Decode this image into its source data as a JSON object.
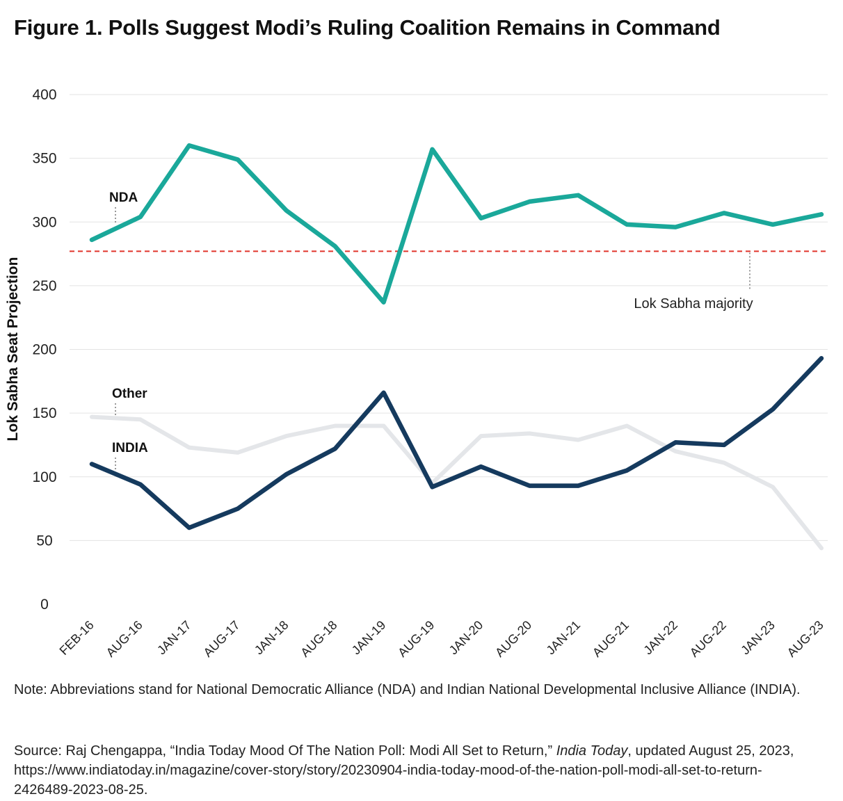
{
  "title": "Figure 1. Polls Suggest Modi’s Ruling Coalition Remains in Command",
  "note": "Note: Abbreviations stand for National Democratic Alliance (NDA) and Indian National Developmental Inclusive Alliance (INDIA).",
  "source": {
    "prefix": "Source: Raj Chengappa, “India Today Mood Of The Nation Poll: Modi All Set to Return,” ",
    "publication": "India Today",
    "suffix": ", updated August 25, 2023, https://www.indiatoday.in/magazine/cover-story/story/20230904-india-today-mood-of-the-nation-poll-modi-all-set-to-return-2426489-2023-08-25."
  },
  "chart_data": {
    "type": "line",
    "ylabel": "Lok Sabha Seat Projection",
    "xlabel": "",
    "ylim": [
      0,
      400
    ],
    "yticks": [
      0,
      50,
      100,
      150,
      200,
      250,
      300,
      350,
      400
    ],
    "grid": true,
    "categories": [
      "FEB-16",
      "AUG-16",
      "JAN-17",
      "AUG-17",
      "JAN-18",
      "AUG-18",
      "JAN-19",
      "AUG-19",
      "JAN-20",
      "AUG-20",
      "JAN-21",
      "AUG-21",
      "JAN-22",
      "AUG-22",
      "JAN-23",
      "AUG-23"
    ],
    "series": [
      {
        "name": "NDA",
        "color": "#1aa89a",
        "values": [
          286,
          304,
          360,
          349,
          309,
          281,
          237,
          357,
          303,
          316,
          321,
          298,
          296,
          307,
          298,
          306
        ]
      },
      {
        "name": "Other",
        "color": "#e4e6e9",
        "values": [
          147,
          145,
          123,
          119,
          132,
          140,
          140,
          95,
          132,
          134,
          129,
          140,
          120,
          111,
          92,
          44
        ]
      },
      {
        "name": "INDIA",
        "color": "#153a5e",
        "values": [
          110,
          94,
          60,
          75,
          102,
          122,
          166,
          92,
          108,
          93,
          93,
          105,
          127,
          125,
          153,
          193
        ]
      }
    ],
    "reference_line": {
      "value": 277,
      "label": "Lok Sabha majority",
      "color": "#e0352b"
    }
  }
}
